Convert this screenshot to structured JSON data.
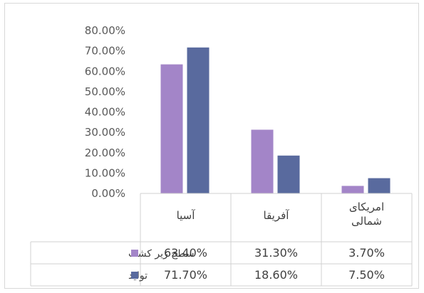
{
  "chart_data": {
    "type": "bar",
    "title": "",
    "xlabel": "",
    "ylabel": "",
    "categories": [
      "آسیا",
      "آفریقا",
      "امریکای شمالی"
    ],
    "category_lines": [
      [
        "آسیا"
      ],
      [
        "آفریقا"
      ],
      [
        "امریکای",
        "شمالی"
      ]
    ],
    "series": [
      {
        "name": "سطح زیر کشت",
        "color": "#a385c8",
        "values": [
          63.4,
          31.3,
          3.7
        ],
        "display": [
          "63.40%",
          "31.30%",
          "3.70%"
        ]
      },
      {
        "name": "تولید",
        "color": "#596a9e",
        "values": [
          71.7,
          18.6,
          7.5
        ],
        "display": [
          "71.70%",
          "18.60%",
          "7.50%"
        ]
      }
    ],
    "ylim": [
      0,
      80
    ],
    "yticks": [
      0,
      10,
      20,
      30,
      40,
      50,
      60,
      70,
      80
    ],
    "ytick_labels": [
      "0.00%",
      "10.00%",
      "20.00%",
      "30.00%",
      "40.00%",
      "50.00%",
      "60.00%",
      "70.00%",
      "80.00%"
    ],
    "grid": false,
    "legend": "data-table"
  }
}
